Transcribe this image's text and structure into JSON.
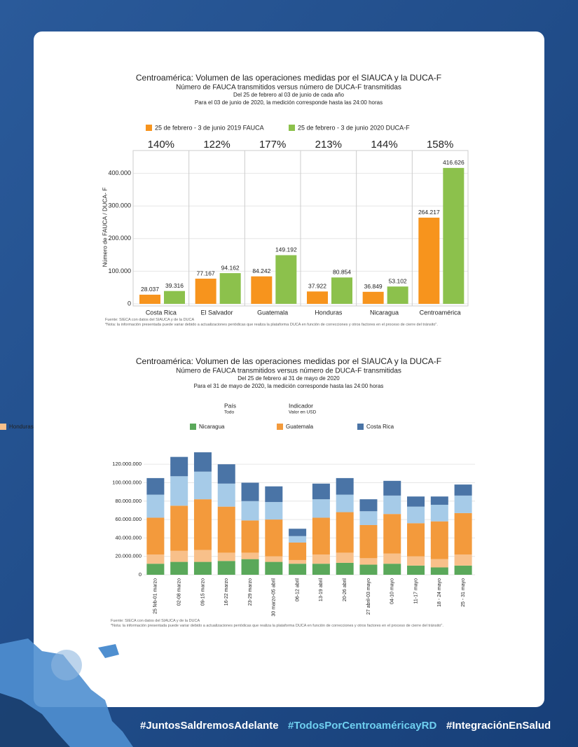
{
  "chart_data": [
    {
      "type": "bar",
      "title": "Centroamérica: Volumen de las operaciones medidas por el SIAUCA y la DUCA-F",
      "subtitle": "Número de FAUCA transmitidos versus número de DUCA-F transmitidas",
      "notes": [
        "Del 25 de febrero al 03 de junio de cada año",
        "Para el 03 de junio de 2020, la medición corresponde hasta las 24:00 horas"
      ],
      "ylabel": "Número de FAUCA / DUCA- F",
      "categories": [
        "Costa Rica",
        "El Salvador",
        "Guatemala",
        "Honduras",
        "Nicaragua",
        "Centroamérica"
      ],
      "growth_labels": [
        "140%",
        "122%",
        "177%",
        "213%",
        "144%",
        "158%"
      ],
      "series": [
        {
          "name": "25 de febrero - 3 de junio 2019 FAUCA",
          "color": "#f7941d",
          "values": [
            28037,
            77167,
            84242,
            37922,
            36849,
            264217
          ],
          "value_labels": [
            "28.037",
            "77.167",
            "84.242",
            "37.922",
            "36.849",
            "264.217"
          ]
        },
        {
          "name": "25 de febrero - 3 de junio 2020 DUCA-F",
          "color": "#8cc14c",
          "values": [
            39316,
            94162,
            149192,
            80854,
            53102,
            416626
          ],
          "value_labels": [
            "39.316",
            "94.162",
            "149.192",
            "80.854",
            "53.102",
            "416.626"
          ]
        }
      ],
      "ylim": [
        0,
        470000
      ],
      "yticks": [
        0,
        {
          "value": 100000,
          "label": "100.000"
        },
        {
          "value": 200000,
          "label": "200.000"
        },
        {
          "value": 300000,
          "label": "300.000"
        },
        {
          "value": 400000,
          "label": "400.000"
        }
      ],
      "grid": true,
      "source": "Fuente: SIECA con datos del SIAUCA y de la DUCA",
      "note": "*Nota: la información presentada puede variar debido a actualizaciones periódicas que realiza la plataforma DUCA en función de correcciones y otros factores en el proceso de cierre del tránsito\"."
    },
    {
      "type": "stacked_bar",
      "title": "Centroamérica: Volumen de las operaciones medidas por el SIAUCA y la DUCA-F",
      "subtitle": "Número de FAUCA transmitidos versus número de DUCA-F transmitidas",
      "notes": [
        "Del 25 de febrero al 31 de mayo de 2020",
        "Para el 31 de mayo de 2020, la medición corresponde hasta las 24:00 horas"
      ],
      "filters": [
        {
          "label": "País",
          "value": "Todo"
        },
        {
          "label": "Indicador",
          "value": "Valor en USD"
        }
      ],
      "categories": [
        "25 feb-01 marzo",
        "02-08 marzo",
        "09-15 marzo",
        "16-22 marzo",
        "23-29 marzo",
        "30 marzo-05 abril",
        "06-12 abril",
        "13-19 abril",
        "20-26 abril",
        "27 abril-03 mayo",
        "04-10 mayo",
        "11-17 mayo",
        "18 - 24 mayo",
        "25 - 31 mayo"
      ],
      "series": [
        {
          "name": "Nicaragua",
          "color": "#5aa85a",
          "values": [
            12000000,
            14000000,
            14000000,
            15000000,
            17000000,
            14000000,
            12000000,
            12000000,
            13000000,
            11000000,
            12000000,
            10000000,
            8000000,
            10000000
          ]
        },
        {
          "name": "Honduras",
          "color": "#f8c08a",
          "values": [
            10000000,
            12000000,
            13000000,
            9000000,
            7000000,
            6000000,
            4000000,
            10000000,
            11000000,
            7000000,
            11000000,
            10000000,
            9000000,
            12000000
          ]
        },
        {
          "name": "Guatemala",
          "color": "#f39a3c",
          "values": [
            40000000,
            49000000,
            55000000,
            50000000,
            35000000,
            40000000,
            19000000,
            40000000,
            44000000,
            36000000,
            43000000,
            36000000,
            41000000,
            45000000
          ]
        },
        {
          "color": "#a6cbe8",
          "values": [
            25000000,
            32000000,
            30000000,
            25000000,
            21000000,
            19000000,
            7000000,
            20000000,
            19000000,
            15000000,
            20000000,
            18000000,
            18000000,
            19000000
          ]
        },
        {
          "name": "Costa Rica",
          "color": "#4a74a6",
          "values": [
            18000000,
            21000000,
            21000000,
            21000000,
            20000000,
            17000000,
            8000000,
            17000000,
            18000000,
            13000000,
            16000000,
            11000000,
            9000000,
            12000000
          ]
        }
      ],
      "ylim": [
        0,
        130000000
      ],
      "yticks": [
        0,
        {
          "value": 20000000,
          "label": "20.000.000"
        },
        {
          "value": 40000000,
          "label": "40.000.000"
        },
        {
          "value": 60000000,
          "label": "60.000.000"
        },
        {
          "value": 80000000,
          "label": "80.000.000"
        },
        {
          "value": 100000000,
          "label": "100.000.000"
        },
        {
          "value": 120000000,
          "label": "120.000.000"
        }
      ],
      "grid": true,
      "source": "Fuente: SIECA con datos del SIAUCA y de la DUCA",
      "note": "*Nota: la información presentada puede variar debido a actualizaciones periódicas que realiza la plataforma DUCA en función de correcciones y otros factores en el proceso de cierre del tránsito\"."
    }
  ],
  "footer": {
    "hashtags": [
      "#JuntosSaldremosAdelante",
      "#TodosPorCentroaméricayRD",
      "#IntegraciónEnSalud"
    ]
  }
}
